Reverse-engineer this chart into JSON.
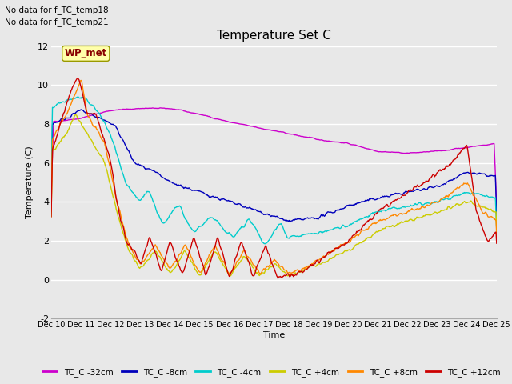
{
  "title": "Temperature Set C",
  "ylabel": "Temperature (C)",
  "xlabel": "Time",
  "top_text": [
    "No data for f_TC_temp18",
    "No data for f_TC_temp21"
  ],
  "wp_met_label": "WP_met",
  "ylim": [
    -2,
    12
  ],
  "yticks": [
    -2,
    0,
    2,
    4,
    6,
    8,
    10,
    12
  ],
  "xtick_labels": [
    "Dec 10",
    "Dec 11",
    "Dec 12",
    "Dec 13",
    "Dec 14",
    "Dec 15",
    "Dec 16",
    "Dec 17",
    "Dec 18",
    "Dec 19",
    "Dec 20",
    "Dec 21",
    "Dec 22",
    "Dec 23",
    "Dec 24",
    "Dec 25"
  ],
  "colors": {
    "purple": "#cc00cc",
    "blue": "#0000bb",
    "cyan": "#00cccc",
    "yellow": "#cccc00",
    "orange": "#ff8800",
    "red": "#cc0000"
  },
  "bg_color": "#e8e8e8",
  "grid_color": "#ffffff",
  "figsize": [
    6.4,
    4.8
  ],
  "dpi": 100
}
